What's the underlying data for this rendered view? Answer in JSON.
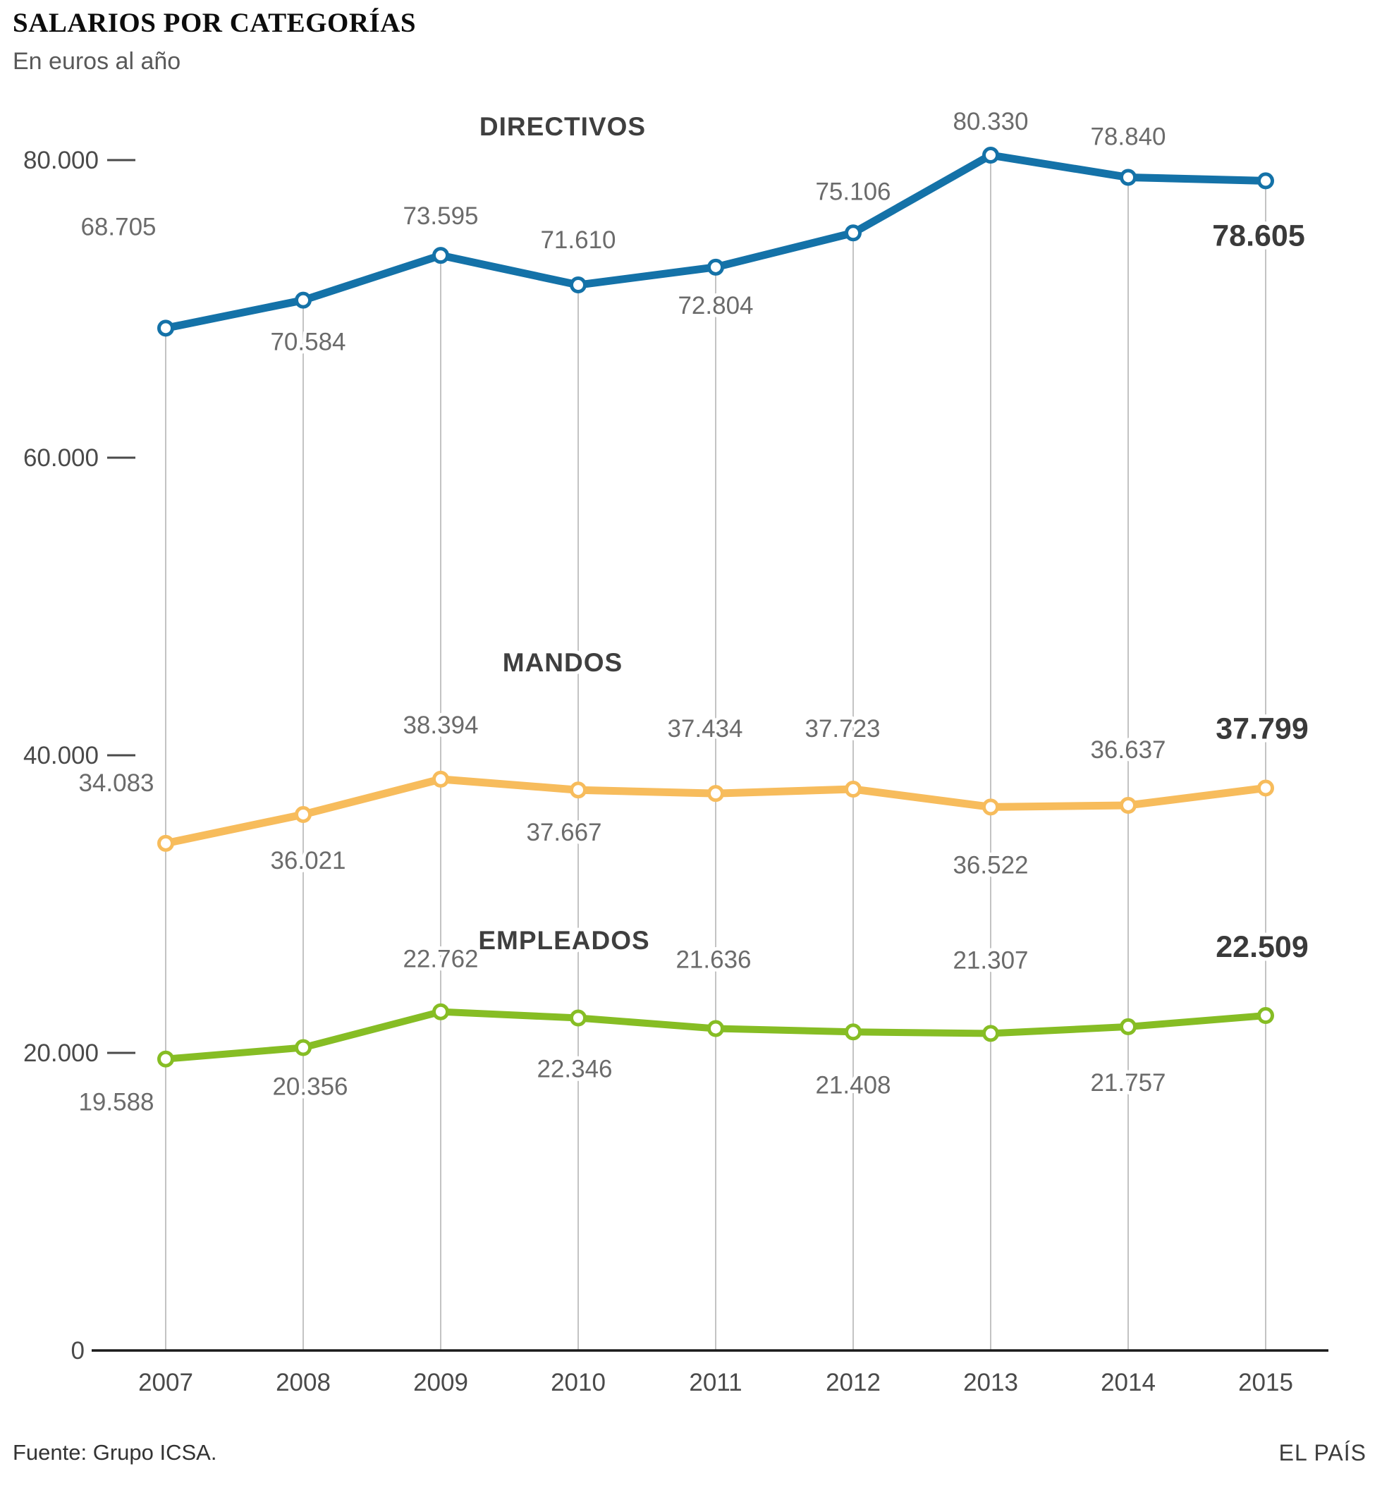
{
  "header": {
    "title": "SALARIOS POR CATEGORÍAS",
    "subtitle": "En euros al año"
  },
  "footer": {
    "source": "Fuente: Grupo ICSA.",
    "brand": "EL PAÍS"
  },
  "chart_data": {
    "type": "line",
    "title": "SALARIOS POR CATEGORÍAS",
    "subtitle": "En euros al año",
    "categories": [
      "2007",
      "2008",
      "2009",
      "2010",
      "2011",
      "2012",
      "2013",
      "2014",
      "2015"
    ],
    "series": [
      {
        "name": "DIRECTIVOS",
        "color": "#1472a8",
        "values": [
          68705,
          70584,
          73595,
          71610,
          72804,
          75106,
          80330,
          78840,
          78605
        ],
        "final_value_label": "78.605",
        "label_offsets": [
          [
            -67,
            -132
          ],
          [
            7,
            71
          ],
          [
            0,
            -44
          ],
          [
            0,
            -52
          ],
          [
            0,
            66
          ],
          [
            0,
            -47
          ],
          [
            0,
            -36
          ],
          [
            0,
            -46
          ],
          [
            -10,
            92
          ]
        ],
        "name_pos": [
          798,
          192
        ]
      },
      {
        "name": "MANDOS",
        "color": "#f7bc5c",
        "values": [
          34083,
          36021,
          38394,
          37667,
          37434,
          37723,
          36522,
          36637,
          37799
        ],
        "final_value_label": "37.799",
        "label_offsets": [
          [
            -70,
            -74
          ],
          [
            7,
            77
          ],
          [
            0,
            -65
          ],
          [
            -20,
            72
          ],
          [
            -15,
            -80
          ],
          [
            -15,
            -74
          ],
          [
            0,
            94
          ],
          [
            0,
            -67
          ],
          [
            -5,
            -70
          ]
        ],
        "name_pos": [
          798,
          952
        ]
      },
      {
        "name": "EMPLEADOS",
        "color": "#86bd24",
        "values": [
          19588,
          20356,
          22762,
          22346,
          21636,
          21408,
          21307,
          21757,
          22509
        ],
        "final_value_label": "22.509",
        "label_offsets": [
          [
            -70,
            73
          ],
          [
            10,
            67
          ],
          [
            0,
            -63
          ],
          [
            -5,
            84
          ],
          [
            -3,
            -86
          ],
          [
            0,
            87
          ],
          [
            0,
            -92
          ],
          [
            0,
            91
          ],
          [
            -5,
            -83
          ]
        ],
        "name_pos": [
          800,
          1346
        ]
      }
    ],
    "ylim": [
      0,
      80000
    ],
    "yticks": [
      0,
      20000,
      40000,
      60000,
      80000
    ],
    "ytick_labels": [
      "0",
      "20.000",
      "40.000",
      "60.000",
      "80.000"
    ],
    "grid": "vertical-line-per-year-from-top-series-point-to-baseline",
    "legend_position": "inline-series-labels",
    "number_format": "dot-thousands",
    "colors": {
      "gridline": "#b4b4b4",
      "axis": "#1a1a1a",
      "tick_dash": "#4a4a4a",
      "data_label": "#6b6b6b",
      "final_label": "#3a3a3a",
      "marker_fill": "#ffffff"
    }
  }
}
